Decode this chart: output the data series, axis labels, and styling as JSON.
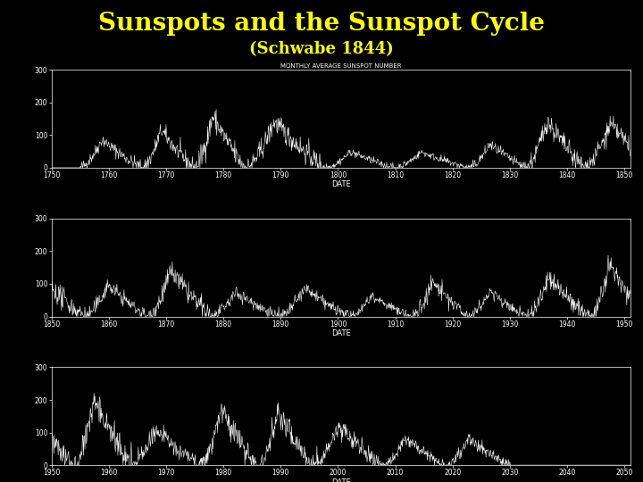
{
  "title": "Sunspots and the Sunspot Cycle",
  "subtitle": "(Schwabe 1844)",
  "title_color": "#FFFF00",
  "subtitle_color": "#FFFF00",
  "background_color": "#000000",
  "axes_bg_color": "#000000",
  "line_color": "#FFFFFF",
  "panel1_xlim": [
    1750,
    1851
  ],
  "panel2_xlim": [
    1850,
    1951
  ],
  "panel3_xlim": [
    1950,
    2051
  ],
  "ylim": [
    0,
    300
  ],
  "yticks": [
    0,
    100,
    200,
    300
  ],
  "xlabel": "DATE",
  "panel1_title": "MONTHLY AVERAGE SUNSPOT NUMBER",
  "title_fontsize": 20,
  "subtitle_fontsize": 13,
  "axes_label_fontsize": 6,
  "tick_fontsize": 5.5,
  "panel_title_fontsize": 5
}
